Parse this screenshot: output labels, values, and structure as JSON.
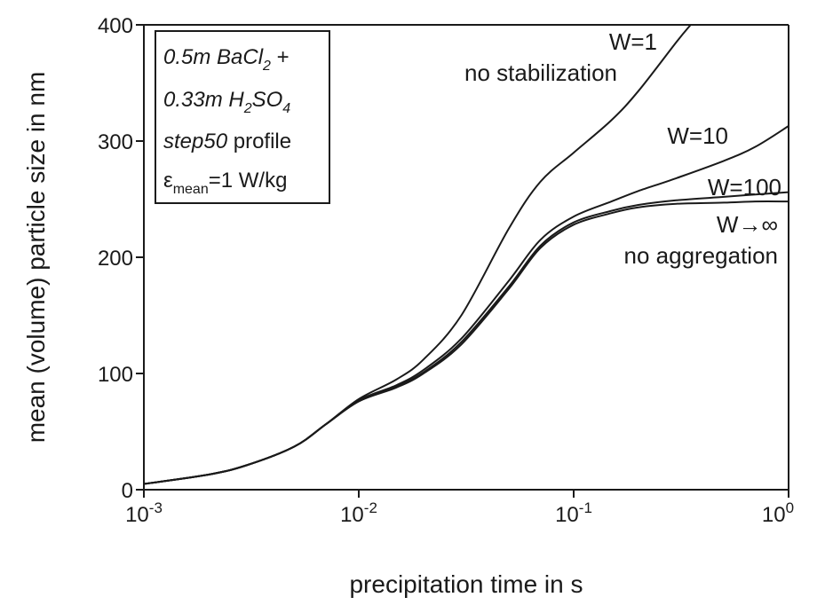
{
  "chart_data": {
    "type": "line",
    "xlabel": "precipitation time in s",
    "ylabel": "mean (volume) particle size in nm",
    "x_scale": "log",
    "xlim": [
      0.001,
      1
    ],
    "ylim": [
      0,
      400
    ],
    "x_ticks": [
      {
        "value": 0.001,
        "base": "10",
        "exp": "-3"
      },
      {
        "value": 0.01,
        "base": "10",
        "exp": "-2"
      },
      {
        "value": 0.1,
        "base": "10",
        "exp": "-1"
      },
      {
        "value": 1,
        "base": "10",
        "exp": "0"
      }
    ],
    "y_ticks": [
      0,
      100,
      200,
      300,
      400
    ],
    "grid": false,
    "series": [
      {
        "name": "W=1",
        "x": [
          0.001,
          0.002,
          0.003,
          0.005,
          0.007,
          0.01,
          0.015,
          0.02,
          0.03,
          0.05,
          0.07,
          0.1,
          0.15,
          0.2,
          0.3,
          0.35
        ],
        "y": [
          5,
          13,
          21,
          37,
          56,
          78,
          95,
          112,
          150,
          225,
          265,
          290,
          318,
          343,
          385,
          400
        ]
      },
      {
        "name": "W=10",
        "x": [
          0.001,
          0.002,
          0.003,
          0.005,
          0.007,
          0.01,
          0.015,
          0.02,
          0.03,
          0.05,
          0.07,
          0.1,
          0.15,
          0.2,
          0.3,
          0.5,
          0.7,
          1.0
        ],
        "y": [
          5,
          13,
          21,
          37,
          56,
          77,
          90,
          103,
          130,
          180,
          215,
          235,
          248,
          257,
          268,
          283,
          295,
          313
        ]
      },
      {
        "name": "W=100",
        "x": [
          0.001,
          0.002,
          0.003,
          0.005,
          0.007,
          0.01,
          0.015,
          0.02,
          0.03,
          0.05,
          0.07,
          0.1,
          0.15,
          0.2,
          0.3,
          0.5,
          0.7,
          1.0
        ],
        "y": [
          5,
          13,
          21,
          37,
          56,
          76,
          89,
          101,
          127,
          175,
          210,
          230,
          240,
          245,
          249,
          252,
          254,
          256
        ]
      },
      {
        "name": "W→∞",
        "x": [
          0.001,
          0.002,
          0.003,
          0.005,
          0.007,
          0.01,
          0.015,
          0.02,
          0.03,
          0.05,
          0.07,
          0.1,
          0.15,
          0.2,
          0.3,
          0.5,
          0.7,
          1.0
        ],
        "y": [
          5,
          13,
          21,
          37,
          56,
          76,
          88,
          100,
          125,
          173,
          208,
          228,
          238,
          243,
          246,
          247,
          248,
          248
        ]
      }
    ],
    "annotations": [
      {
        "text": "W=1",
        "for": 0
      },
      {
        "text": "no stabilization",
        "for": 0
      },
      {
        "text": "W=10",
        "for": 1
      },
      {
        "text": "W=100",
        "for": 2
      },
      {
        "text": "W→∞",
        "for": 3
      },
      {
        "text": "no aggregation",
        "for": 3
      }
    ],
    "legend_box": {
      "placement": "top-left",
      "line1": {
        "italic": "0.5m BaCl",
        "sub": "2",
        "tail": " +"
      },
      "line2": {
        "italic": "0.33m H",
        "sub1": "2",
        "mid": "SO",
        "sub2": "4"
      },
      "line3": {
        "italic": "step50",
        "tail": " profile"
      },
      "line4": {
        "sym": "ε",
        "sub": "mean",
        "tail": "=1 W/kg"
      }
    }
  }
}
